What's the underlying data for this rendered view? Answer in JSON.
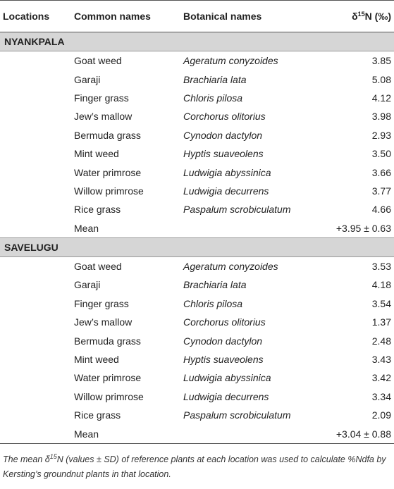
{
  "table": {
    "headers": {
      "locations": "Locations",
      "common": "Common names",
      "botanical": "Botanical names",
      "value_prefix": "δ",
      "value_sup": "15",
      "value_suffix": "N (‰)"
    },
    "groups": [
      {
        "name": "NYANKPALA",
        "rows": [
          {
            "common": "Goat weed",
            "botanical": "Ageratum conyzoides",
            "value": "3.85"
          },
          {
            "common": "Garaji",
            "botanical": "Brachiaria lata",
            "value": "5.08"
          },
          {
            "common": "Finger grass",
            "botanical": "Chloris pilosa",
            "value": "4.12"
          },
          {
            "common": "Jew’s mallow",
            "botanical": "Corchorus olitorius",
            "value": "3.98"
          },
          {
            "common": "Bermuda grass",
            "botanical": "Cynodon dactylon",
            "value": "2.93"
          },
          {
            "common": "Mint weed",
            "botanical": "Hyptis suaveolens",
            "value": "3.50"
          },
          {
            "common": "Water primrose",
            "botanical": "Ludwigia abyssinica",
            "value": "3.66"
          },
          {
            "common": "Willow primrose",
            "botanical": "Ludwigia decurrens",
            "value": "3.77"
          },
          {
            "common": "Rice grass",
            "botanical": "Paspalum scrobiculatum",
            "value": "4.66"
          },
          {
            "common": "Mean",
            "botanical": "",
            "value": "+3.95 ± 0.63"
          }
        ]
      },
      {
        "name": "SAVELUGU",
        "rows": [
          {
            "common": "Goat weed",
            "botanical": "Ageratum conyzoides",
            "value": "3.53"
          },
          {
            "common": "Garaji",
            "botanical": "Brachiaria lata",
            "value": "4.18"
          },
          {
            "common": "Finger grass",
            "botanical": "Chloris pilosa",
            "value": "3.54"
          },
          {
            "common": "Jew’s mallow",
            "botanical": "Corchorus olitorius",
            "value": "1.37"
          },
          {
            "common": "Bermuda grass",
            "botanical": "Cynodon dactylon",
            "value": "2.48"
          },
          {
            "common": "Mint weed",
            "botanical": "Hyptis suaveolens",
            "value": "3.43"
          },
          {
            "common": "Water primrose",
            "botanical": "Ludwigia abyssinica",
            "value": "3.42"
          },
          {
            "common": "Willow primrose",
            "botanical": "Ludwigia decurrens",
            "value": "3.34"
          },
          {
            "common": "Rice grass",
            "botanical": "Paspalum scrobiculatum",
            "value": "2.09"
          },
          {
            "common": "Mean",
            "botanical": "",
            "value": "+3.04 ± 0.88"
          }
        ]
      }
    ]
  },
  "footnote": {
    "part1": "The mean δ",
    "sup": "15",
    "part2": "N (values ± SD) of reference plants at each location was used to calculate %Ndfa by Kersting’s groundnut plants in that location."
  }
}
